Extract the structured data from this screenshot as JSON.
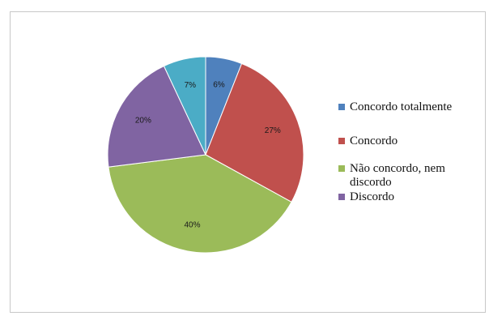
{
  "chart_data": {
    "type": "pie",
    "title": "",
    "categories": [
      "Concordo totalmente",
      "Concordo",
      "Não concordo, nem discordo",
      "Discordo",
      ""
    ],
    "values": [
      6,
      27,
      40,
      20,
      7
    ],
    "value_labels": [
      "6%",
      "27%",
      "40%",
      "20%",
      "7%"
    ],
    "colors": [
      "#4f81bd",
      "#c0504d",
      "#9bbb59",
      "#8064a2",
      "#4bacc6"
    ],
    "legend_position": "right",
    "legend": [
      {
        "label": "Concordo totalmente",
        "color": "#4f81bd"
      },
      {
        "label": "Concordo",
        "color": "#c0504d"
      },
      {
        "label": "Não concordo, nem discordo",
        "color": "#9bbb59"
      },
      {
        "label": "Discordo",
        "color": "#8064a2"
      }
    ]
  }
}
